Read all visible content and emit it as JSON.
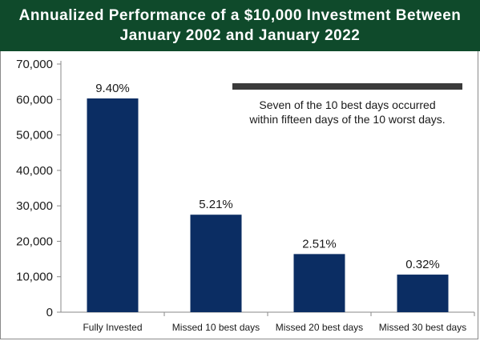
{
  "header": {
    "title_line1": "Annualized Performance of a $10,000 Investment Between",
    "title_line2": "January 2002 and January 2022"
  },
  "note": {
    "line1": "Seven of the 10 best days occurred",
    "line2": "within fifteen days of the 10 worst days."
  },
  "colors": {
    "bar": "#0b2d63",
    "title_bg": "#0f4a2b",
    "note_bar": "#3b3b3b"
  },
  "chart_data": {
    "type": "bar",
    "categories": [
      "Fully Invested",
      "Missed 10 best days",
      "Missed 20 best days",
      "Missed 30 best days"
    ],
    "values": [
      60300,
      27500,
      16400,
      10600
    ],
    "data_labels": [
      "9.40%",
      "5.21%",
      "2.51%",
      "0.32%"
    ],
    "ylim": [
      0,
      70000
    ],
    "yticks": [
      0,
      10000,
      20000,
      30000,
      40000,
      50000,
      60000,
      70000
    ],
    "ytick_labels": [
      "0",
      "10,000",
      "20,000",
      "30,000",
      "40,000",
      "50,000",
      "60,000",
      "70,000"
    ],
    "grid": false,
    "legend": "none"
  }
}
